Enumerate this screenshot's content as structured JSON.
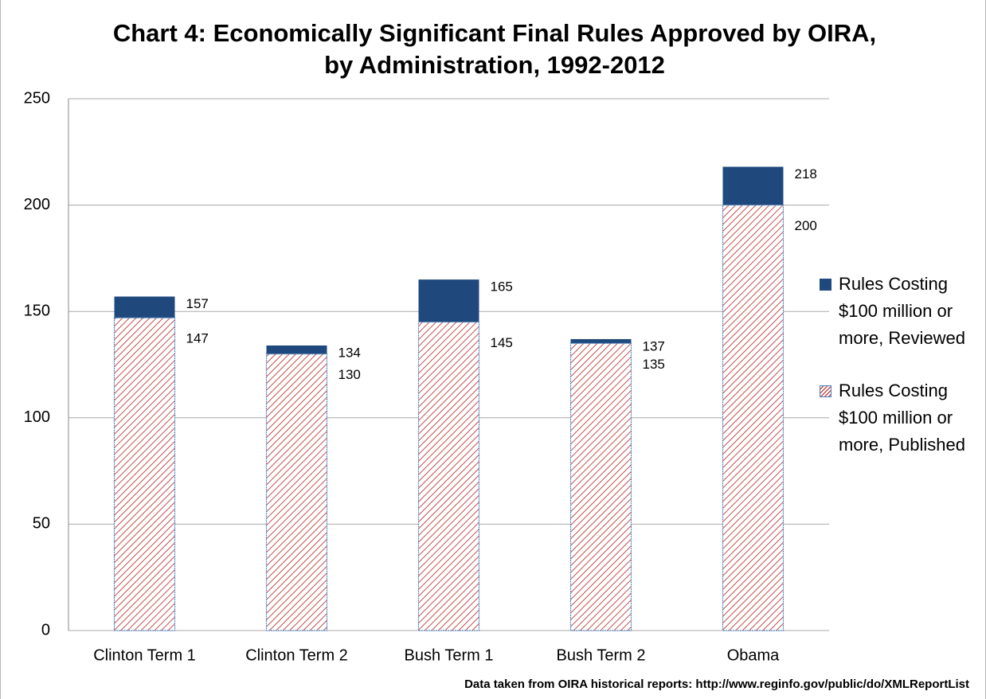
{
  "chart_data": {
    "type": "bar",
    "title": [
      "Chart 4: Economically Significant Final Rules Approved by OIRA,",
      "by Administration, 1992-2012"
    ],
    "categories": [
      "Clinton Term 1",
      "Clinton Term 2",
      "Bush Term 1",
      "Bush Term 2",
      "Obama"
    ],
    "series": [
      {
        "name": "Rules Costing $100 million or more, Reviewed",
        "color": "#1f497d",
        "values": [
          157,
          134,
          165,
          137,
          218
        ]
      },
      {
        "name": "Rules Costing $100 million or more, Published",
        "color": "#c0504d",
        "values": [
          147,
          130,
          145,
          135,
          200
        ]
      }
    ],
    "ylim": [
      0,
      250
    ],
    "yticks": [
      0,
      50,
      100,
      150,
      200,
      250
    ],
    "grid": true,
    "legend": "right",
    "source": "Data taken from OIRA historical reports: http://www.reginfo.gov/public/do/XMLReportList"
  }
}
